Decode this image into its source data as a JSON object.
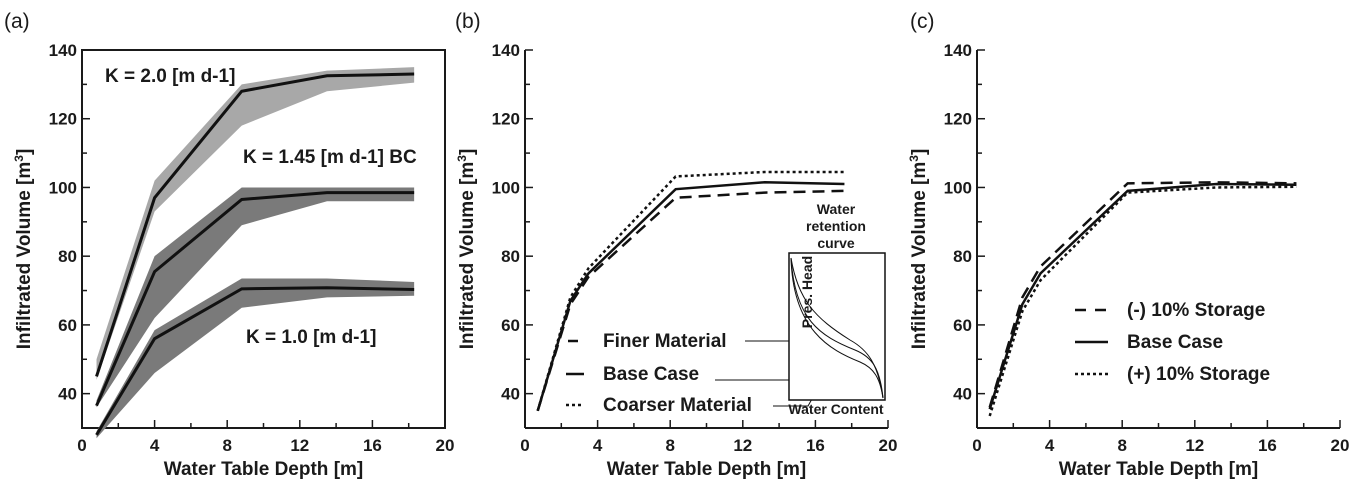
{
  "chart_data": [
    {
      "panel": "(a)",
      "type": "line",
      "xlabel": "Water Table Depth [m]",
      "ylabel": "Infiltrated Volume [m³]",
      "ylabel_main": "Infiltrated Volume [m",
      "ylabel_sup": "3",
      "ylabel_end": "]",
      "xlim": [
        0,
        20
      ],
      "ylim": [
        30,
        140
      ],
      "xticks": [
        "0",
        "4",
        "8",
        "12",
        "16",
        "20"
      ],
      "yticks": [
        "40",
        "60",
        "80",
        "100",
        "120",
        "140"
      ],
      "series": [
        {
          "name": "K = 2.0 [m d-1]",
          "x": [
            0.8,
            4,
            8.8,
            13.5,
            18.3
          ],
          "y": [
            45,
            97,
            128,
            132.5,
            133
          ],
          "band_low": [
            44,
            93,
            118,
            128,
            130.5
          ],
          "band_high": [
            50,
            102,
            130,
            134,
            135
          ],
          "band_color": "#a8a8a8"
        },
        {
          "name": "K = 1.45 [m d-1] BC",
          "x": [
            0.8,
            4,
            8.8,
            13.5,
            18.3
          ],
          "y": [
            36.5,
            75.5,
            96.5,
            98.5,
            98.5
          ],
          "band_low": [
            36,
            62,
            89,
            96,
            96
          ],
          "band_high": [
            38,
            80,
            100,
            100,
            100
          ],
          "band_color": "#7a7a7a"
        },
        {
          "name": "K = 1.0 [m d-1]",
          "x": [
            0.8,
            4,
            8.8,
            13.5,
            18.3
          ],
          "y": [
            28,
            56,
            70.5,
            70.8,
            70.3
          ],
          "band_low": [
            27,
            46,
            65,
            68,
            68.5
          ],
          "band_high": [
            29,
            58.5,
            73.5,
            73.5,
            72.5
          ],
          "band_color": "#7a7a7a"
        }
      ],
      "annotations": [
        "K = 2.0 [m d-1]",
        "K = 1.45 [m d-1] BC",
        "K = 1.0 [m d-1]"
      ]
    },
    {
      "panel": "(b)",
      "type": "line",
      "xlabel": "Water Table Depth [m]",
      "ylabel": "Infiltrated Volume [m³]",
      "ylabel_main": "Infiltrated Volume [m",
      "ylabel_sup": "3",
      "ylabel_end": "]",
      "xlim": [
        0,
        20
      ],
      "ylim": [
        30,
        140
      ],
      "xticks": [
        "0",
        "4",
        "8",
        "12",
        "16",
        "20"
      ],
      "yticks": [
        "40",
        "60",
        "80",
        "100",
        "120",
        "140"
      ],
      "series": [
        {
          "name": "Finer Material",
          "style": "dashed",
          "x": [
            0.7,
            2.5,
            3.5,
            8.3,
            13.2,
            17.6
          ],
          "y": [
            35,
            66,
            74,
            97,
            98.5,
            99
          ]
        },
        {
          "name": "Base Case",
          "style": "solid",
          "x": [
            0.7,
            2.5,
            3.5,
            8.3,
            13.2,
            17.6
          ],
          "y": [
            35,
            67,
            75,
            99.5,
            101.5,
            101
          ]
        },
        {
          "name": "Coarser Material",
          "style": "dotted",
          "x": [
            0.7,
            2.5,
            3.5,
            8.3,
            13.2,
            17.6
          ],
          "y": [
            35,
            68,
            76.5,
            103.2,
            104.5,
            104.5
          ]
        }
      ],
      "legend": [
        "Finer Material",
        "Base Case",
        "Coarser Material"
      ],
      "inset": {
        "title_line1": "Water",
        "title_line2": "retention",
        "title_line3": "curve",
        "ylabel": "Pres. Head",
        "xlabel": "Water Content"
      }
    },
    {
      "panel": "(c)",
      "type": "line",
      "xlabel": "Water Table Depth [m]",
      "ylabel": "Infiltrated Volume [m³]",
      "ylabel_main": "Infiltrated Volume [m",
      "ylabel_sup": "3",
      "ylabel_end": "]",
      "xlim": [
        0,
        20
      ],
      "ylim": [
        30,
        140
      ],
      "xticks": [
        "0",
        "4",
        "8",
        "12",
        "16",
        "20"
      ],
      "yticks": [
        "40",
        "60",
        "80",
        "100",
        "120",
        "140"
      ],
      "series": [
        {
          "name": "(-) 10% Storage",
          "style": "dashed",
          "x": [
            0.7,
            2.5,
            3.5,
            8.3,
            13.2,
            17.6
          ],
          "y": [
            36,
            68,
            77,
            101.2,
            101.5,
            101.2
          ]
        },
        {
          "name": "Base Case",
          "style": "solid",
          "x": [
            0.7,
            2.5,
            3.5,
            8.3,
            13.2,
            17.6
          ],
          "y": [
            35.5,
            66,
            75,
            99,
            101,
            100.8
          ]
        },
        {
          "name": "(+) 10% Storage",
          "style": "dotted",
          "x": [
            0.7,
            2.5,
            3.5,
            8.3,
            13.2,
            17.6
          ],
          "y": [
            33.5,
            64,
            73,
            98.5,
            100,
            100.2
          ]
        }
      ],
      "legend": [
        "(-) 10% Storage",
        "Base Case",
        "(+) 10% Storage"
      ]
    }
  ]
}
